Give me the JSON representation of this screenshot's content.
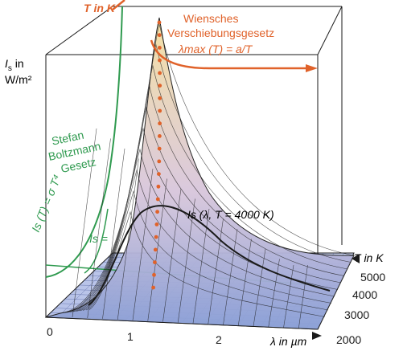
{
  "diagram": {
    "axes": {
      "temperature_label": "T in K",
      "intensity_label_line1": "I",
      "intensity_label_sub": "s",
      "intensity_label_rest": " in",
      "intensity_unit": "W/m²",
      "wavelength_label": "λ in µm",
      "right_temperature_label": "T in K"
    },
    "wavelength_ticks": [
      "0",
      "1",
      "2"
    ],
    "temperature_ticks": [
      "5000",
      "4000",
      "3000",
      "2000"
    ],
    "wien": {
      "line1": "Wiensches",
      "line2": "Verschiebungsgesetz",
      "formula": "λmax (T) = a/T"
    },
    "stefan": {
      "line1": "Stefan",
      "line2": "Boltzmann",
      "line3": "Gesetz",
      "formula": "Is (T) = σ T⁴"
    },
    "curve_label": "Is (λ, T = 4000 K)",
    "is_partial_label": "Is =",
    "colors": {
      "green": "#2f9a4f",
      "orange": "#e0622a",
      "surface_low": "#8a9fd6",
      "surface_high": "#f5e0a0"
    }
  }
}
